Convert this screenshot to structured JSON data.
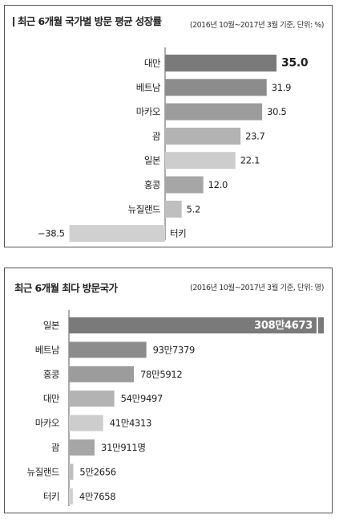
{
  "chart_data": [
    {
      "type": "bar",
      "orientation": "horizontal",
      "title": "최근 6개월 국가별 방문 평균 성장률",
      "subtitle": "(2016년 10월~2017년 3월 기준, 단위: %)",
      "categories": [
        "대만",
        "베트남",
        "마카오",
        "괌",
        "일본",
        "홍콩",
        "뉴질랜드",
        "터키"
      ],
      "values": [
        35.0,
        31.9,
        30.5,
        23.7,
        22.1,
        12.0,
        5.2,
        -38.5
      ],
      "value_labels": [
        "35.0",
        "31.9",
        "30.5",
        "23.7",
        "22.1",
        "12.0",
        "5.2",
        "−38.5"
      ],
      "xlim": [
        -40,
        36
      ],
      "colors": [
        "#7a7a7a",
        "#8c8c8c",
        "#9c9c9c",
        "#b3b3b3",
        "#cdcdcd",
        "#a6a6a6",
        "#bfbfbf",
        "#d0d0d0"
      ]
    },
    {
      "type": "bar",
      "orientation": "horizontal",
      "title": "최근 6개월 최다 방문국가",
      "subtitle": "(2016년 10월~2017년 3월 기준, 단위: 명)",
      "categories": [
        "일본",
        "베트남",
        "홍콩",
        "대만",
        "마카오",
        "괌",
        "뉴질랜드",
        "터키"
      ],
      "values": [
        3084673,
        937379,
        785912,
        549497,
        414313,
        310911,
        52656,
        47658
      ],
      "value_labels": [
        "308만4673",
        "93만7379",
        "78만5912",
        "54만9497",
        "41만4313",
        "31만911명",
        "5만2656",
        "4만7658"
      ],
      "xlim": [
        0,
        3084673
      ],
      "colors": [
        "#7a7a7a",
        "#8c8c8c",
        "#9c9c9c",
        "#b3b3b3",
        "#cdcdcd",
        "#a6a6a6",
        "#bfbfbf",
        "#d0d0d0"
      ]
    }
  ]
}
